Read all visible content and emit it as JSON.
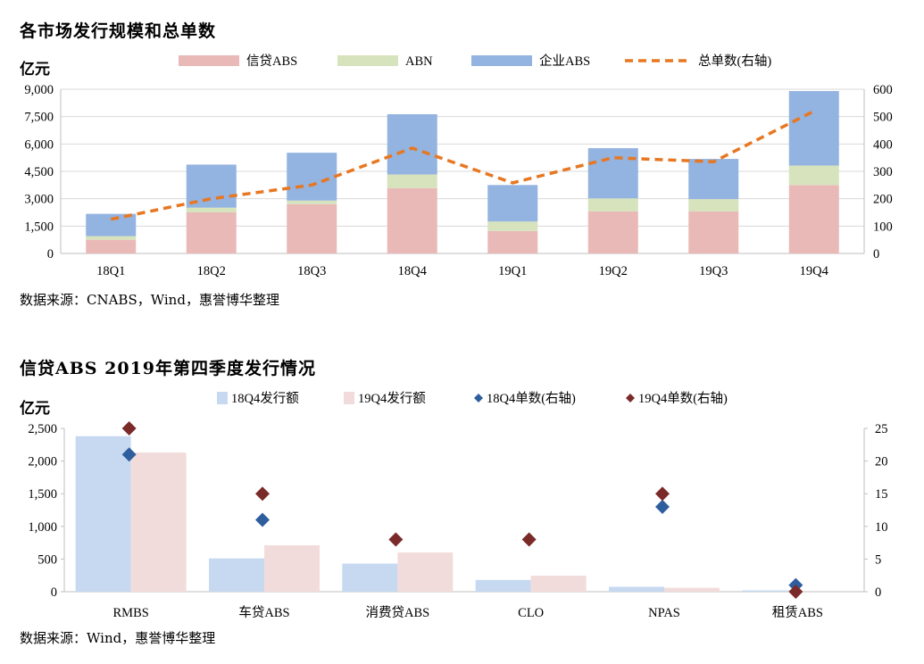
{
  "chart1": {
    "title": "各市场发行规模和总单数",
    "unit": "亿元",
    "source": "数据来源：CNABS，Wind，惠誉博华整理",
    "colors": {
      "xindai": "#e9b9b7",
      "abn": "#d6e3bd",
      "qiye": "#93b3e0",
      "line": "#e87722",
      "grid": "#d9d9d9"
    }
  },
  "chart2": {
    "title": "信贷ABS 2019年第四季度发行情况",
    "unit": "亿元",
    "source": "数据来源：Wind，惠誉博华整理",
    "colors": {
      "bar18": "#c6d9f1",
      "bar19": "#f2dcdb",
      "dot18": "#2e5e9e",
      "dot19": "#7b2a2a"
    }
  },
  "chart_data": [
    {
      "type": "bar",
      "stacked": true,
      "categories": [
        "18Q1",
        "18Q2",
        "18Q3",
        "18Q4",
        "19Q1",
        "19Q2",
        "19Q3",
        "19Q4"
      ],
      "series": [
        {
          "name": "信贷ABS",
          "values": [
            750,
            2250,
            2700,
            3580,
            1230,
            2300,
            2300,
            3750
          ]
        },
        {
          "name": "ABN",
          "values": [
            200,
            260,
            200,
            750,
            520,
            720,
            680,
            1070
          ]
        },
        {
          "name": "企业ABS",
          "values": [
            1220,
            2360,
            2620,
            3300,
            2000,
            2750,
            2200,
            4080
          ]
        },
        {
          "name": "总单数(右轴)",
          "type": "line",
          "axis": "right",
          "values": [
            125,
            200,
            250,
            385,
            258,
            350,
            335,
            520
          ]
        }
      ],
      "ylim": [
        0,
        9000
      ],
      "yticks": [
        "0",
        "1,500",
        "3,000",
        "4,500",
        "6,000",
        "7,500",
        "9,000"
      ],
      "y2lim": [
        0,
        600
      ],
      "y2ticks": [
        "0",
        "100",
        "200",
        "300",
        "400",
        "500",
        "600"
      ],
      "legend": "top",
      "grid": true
    },
    {
      "type": "bar",
      "categories": [
        "RMBS",
        "车贷ABS",
        "消费贷ABS",
        "CLO",
        "NPAS",
        "租赁ABS"
      ],
      "series": [
        {
          "name": "18Q4发行额",
          "values": [
            2380,
            510,
            430,
            180,
            75,
            20
          ]
        },
        {
          "name": "19Q4发行额",
          "values": [
            2130,
            710,
            600,
            245,
            60,
            0
          ]
        },
        {
          "name": "18Q4单数(右轴)",
          "type": "scatter",
          "axis": "right",
          "values": [
            21,
            11,
            null,
            null,
            13,
            1
          ]
        },
        {
          "name": "19Q4单数(右轴)",
          "type": "scatter",
          "axis": "right",
          "values": [
            25,
            15,
            8,
            8,
            15,
            0
          ]
        }
      ],
      "ylim": [
        0,
        2500
      ],
      "yticks": [
        "0",
        "500",
        "1,000",
        "1,500",
        "2,000",
        "2,500"
      ],
      "y2lim": [
        0,
        25
      ],
      "y2ticks": [
        "0",
        "5",
        "10",
        "15",
        "20",
        "25"
      ],
      "legend": "top",
      "grid": false
    }
  ]
}
